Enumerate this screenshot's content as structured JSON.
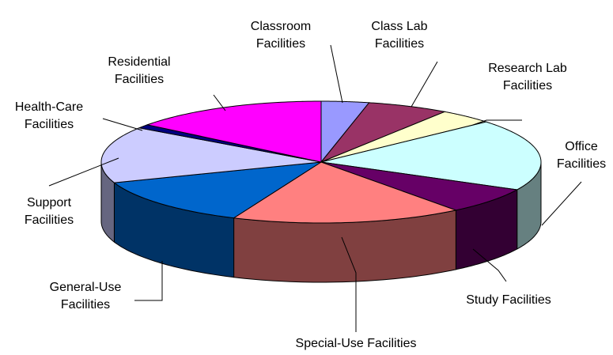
{
  "chart_data": {
    "type": "pie3d",
    "categories": [
      "Classroom Facilities",
      "Class Lab Facilities",
      "Research Lab Facilities",
      "Office Facilities",
      "Study Facilities",
      "Special-Use Facilities",
      "General-Use Facilities",
      "Support Facilities",
      "Health-Care Facilities",
      "Residential Facilities"
    ],
    "values": [
      3.5,
      6,
      4,
      19,
      7,
      17,
      13,
      15,
      1,
      14.5
    ],
    "colors": [
      "#9999ff",
      "#993366",
      "#ffffcc",
      "#ccffff",
      "#660066",
      "#ff8080",
      "#0066cc",
      "#ccccff",
      "#000080",
      "#ff00ff"
    ]
  }
}
